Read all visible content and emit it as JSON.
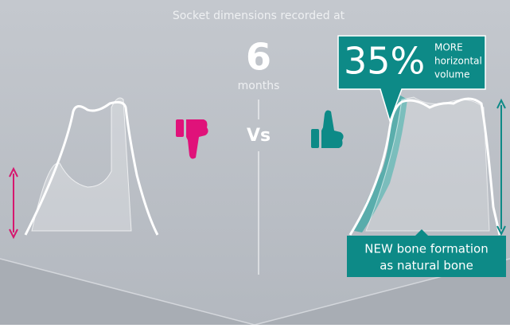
{
  "header": {
    "caption": "Socket dimensions recorded at",
    "number": 6,
    "unit": "months"
  },
  "comparison": {
    "separator": "Vs"
  },
  "callout": {
    "value": "35%",
    "lines": [
      "MORE",
      "horizontal",
      "volume"
    ]
  },
  "note": {
    "lines": [
      "NEW bone formation",
      "as natural bone"
    ]
  }
}
